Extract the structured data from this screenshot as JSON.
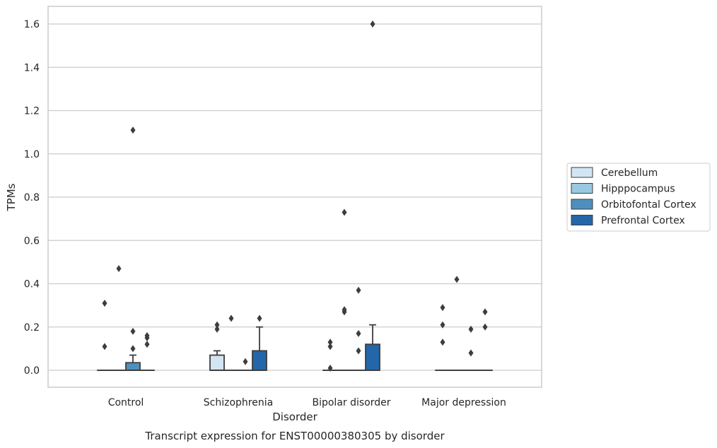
{
  "chart_data": {
    "type": "box",
    "title": "",
    "caption": "Transcript expression for ENST00000380305 by disorder",
    "xlabel": "Disorder",
    "ylabel": "TPMs",
    "ylim": [
      -0.08,
      1.68
    ],
    "yticks": [
      0.0,
      0.2,
      0.4,
      0.6,
      0.8,
      1.0,
      1.2,
      1.4,
      1.6
    ],
    "ytick_labels": [
      "0.0",
      "0.2",
      "0.4",
      "0.6",
      "0.8",
      "1.0",
      "1.2",
      "1.4",
      "1.6"
    ],
    "categories": [
      "Control",
      "Schizophrenia",
      "Bipolar disorder",
      "Major depression"
    ],
    "grid": "horizontal",
    "legend_position": "right, outside plot",
    "series": [
      {
        "name": "Cerebellum",
        "color": "#d3e4f3",
        "boxes": [
          {
            "q1": 0,
            "median": 0,
            "q3": 0,
            "whisker_low": 0,
            "whisker_high": 0,
            "outliers": [
              0.11,
              0.31
            ]
          },
          {
            "q1": 0,
            "median": 0,
            "q3": 0.07,
            "whisker_low": 0,
            "whisker_high": 0.09,
            "outliers": [
              0.19,
              0.21
            ]
          },
          {
            "q1": 0,
            "median": 0,
            "q3": 0,
            "whisker_low": 0,
            "whisker_high": 0,
            "outliers": [
              0.01,
              0.11,
              0.13
            ]
          },
          {
            "q1": 0,
            "median": 0,
            "q3": 0,
            "whisker_low": 0,
            "whisker_high": 0,
            "outliers": [
              0.13,
              0.21,
              0.29
            ]
          }
        ]
      },
      {
        "name": "Hipppocampus",
        "color": "#9ac8e0",
        "boxes": [
          {
            "q1": 0,
            "median": 0,
            "q3": 0,
            "whisker_low": 0,
            "whisker_high": 0,
            "outliers": [
              0.47
            ]
          },
          {
            "q1": 0,
            "median": 0,
            "q3": 0,
            "whisker_low": 0,
            "whisker_high": 0,
            "outliers": [
              0.24
            ]
          },
          {
            "q1": 0,
            "median": 0,
            "q3": 0,
            "whisker_low": 0,
            "whisker_high": 0,
            "outliers": [
              0.27,
              0.28,
              0.73
            ]
          },
          {
            "q1": 0,
            "median": 0,
            "q3": 0,
            "whisker_low": 0,
            "whisker_high": 0,
            "outliers": [
              0.42
            ]
          }
        ]
      },
      {
        "name": "Orbitofontal Cortex",
        "color": "#4f8fbf",
        "boxes": [
          {
            "q1": 0,
            "median": 0,
            "q3": 0.035,
            "whisker_low": 0,
            "whisker_high": 0.07,
            "outliers": [
              0.1,
              0.18,
              1.11
            ]
          },
          {
            "q1": 0,
            "median": 0,
            "q3": 0,
            "whisker_low": 0,
            "whisker_high": 0,
            "outliers": [
              0.04
            ]
          },
          {
            "q1": 0,
            "median": 0,
            "q3": 0,
            "whisker_low": 0,
            "whisker_high": 0,
            "outliers": [
              0.09,
              0.17,
              0.37
            ]
          },
          {
            "q1": 0,
            "median": 0,
            "q3": 0,
            "whisker_low": 0,
            "whisker_high": 0,
            "outliers": [
              0.08,
              0.19
            ]
          }
        ]
      },
      {
        "name": "Prefrontal Cortex",
        "color": "#2366a9",
        "boxes": [
          {
            "q1": 0,
            "median": 0,
            "q3": 0,
            "whisker_low": 0,
            "whisker_high": 0,
            "outliers": [
              0.12,
              0.15,
              0.16
            ]
          },
          {
            "q1": 0,
            "median": 0,
            "q3": 0.09,
            "whisker_low": 0,
            "whisker_high": 0.2,
            "outliers": [
              0.24
            ]
          },
          {
            "q1": 0,
            "median": 0,
            "q3": 0.12,
            "whisker_low": 0,
            "whisker_high": 0.21,
            "outliers": [
              1.6
            ]
          },
          {
            "q1": 0,
            "median": 0,
            "q3": 0,
            "whisker_low": 0,
            "whisker_high": 0,
            "outliers": [
              0.2,
              0.27
            ]
          }
        ]
      }
    ]
  }
}
